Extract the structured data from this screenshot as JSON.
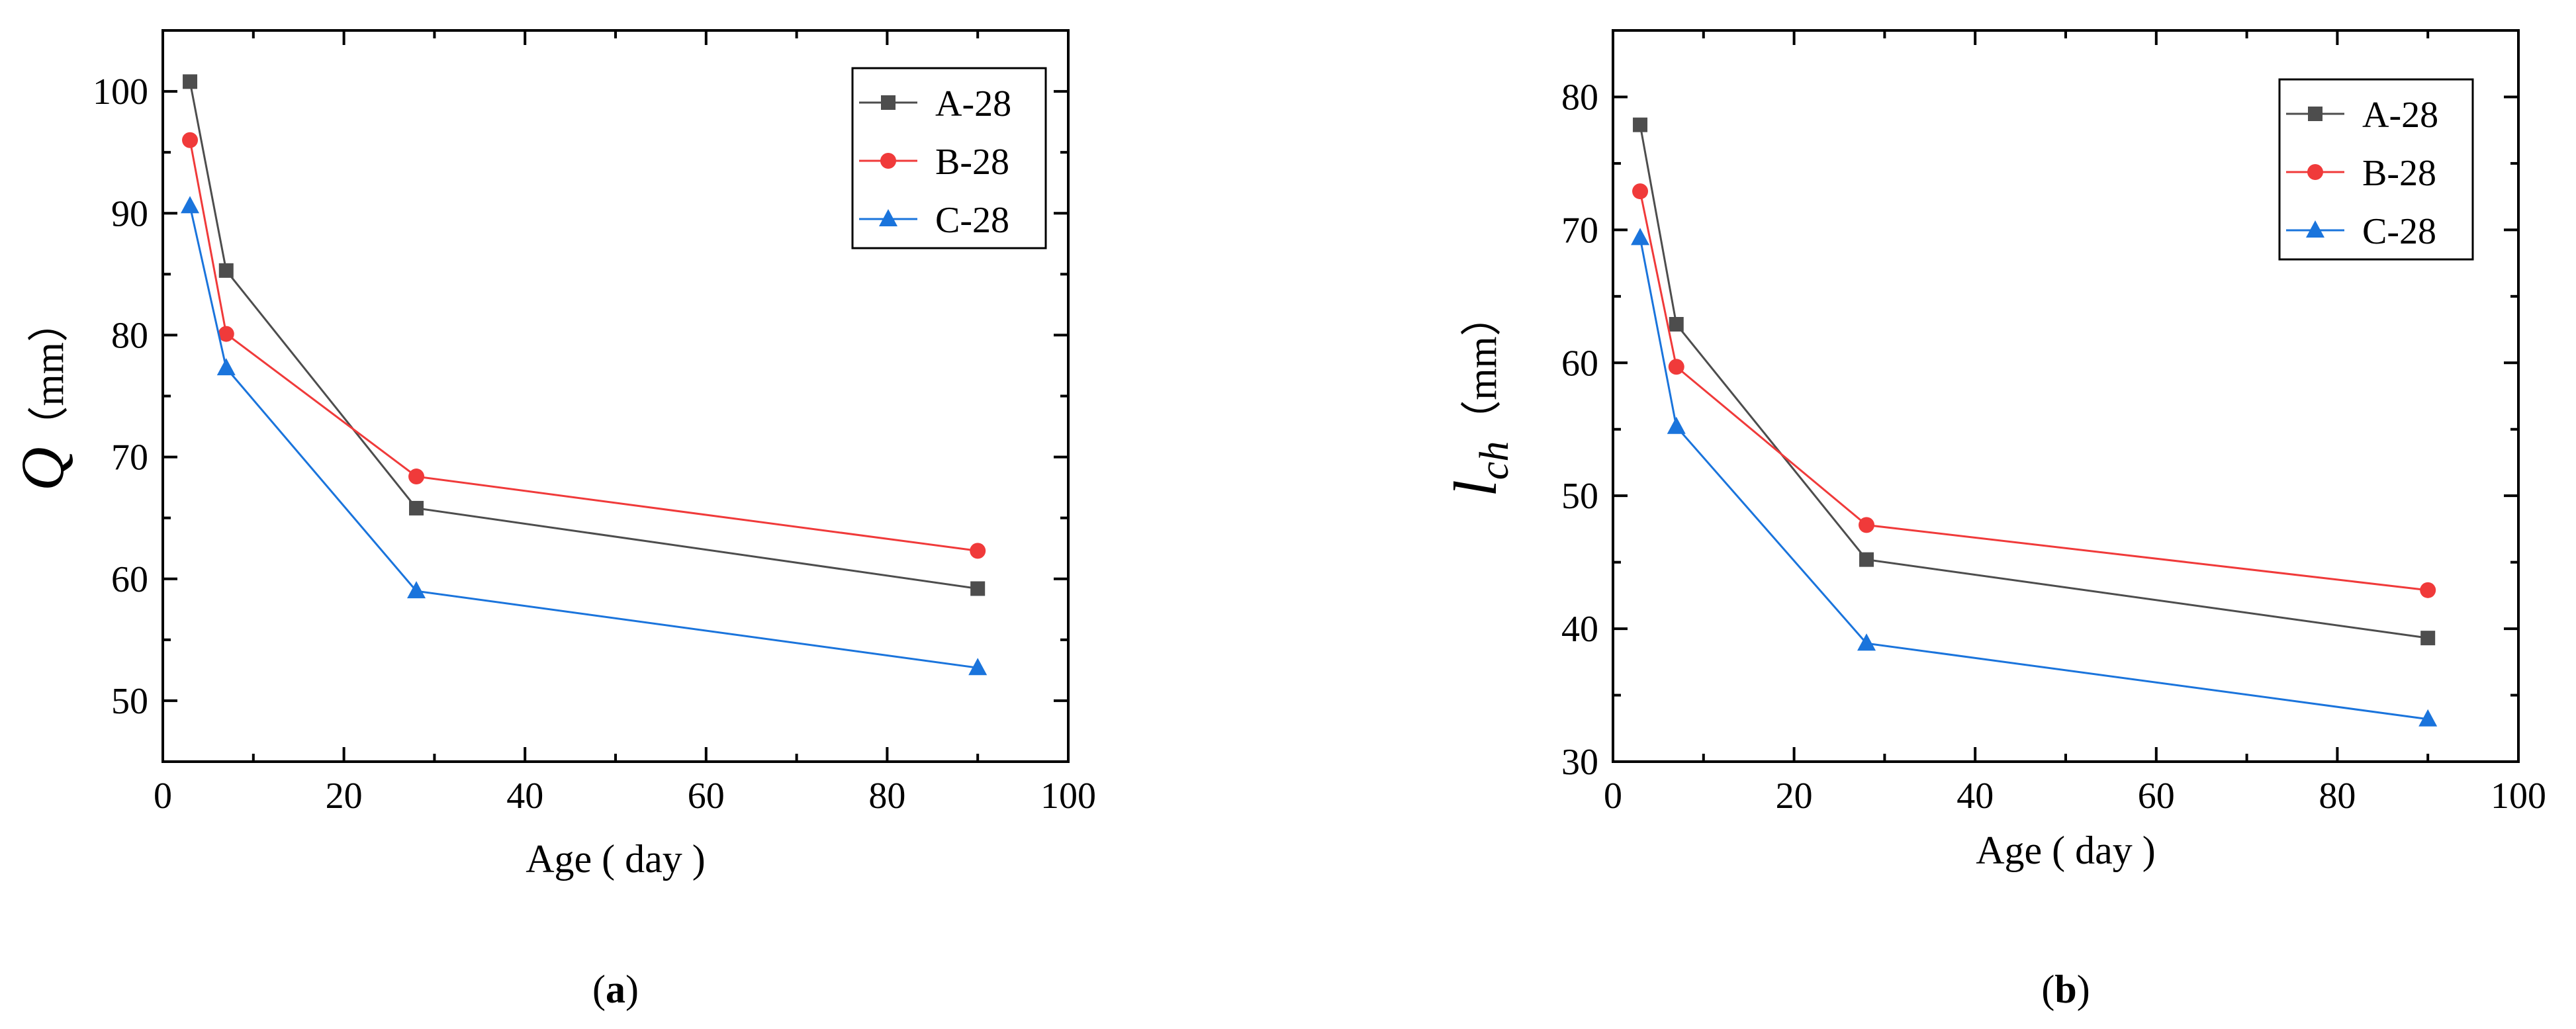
{
  "chart_data": [
    {
      "type": "line",
      "panel_label": "a",
      "title": "",
      "xlabel": "Age ( day )",
      "ylabel": {
        "symbol": "Q",
        "subscript": "",
        "unit": "（mm）"
      },
      "xlim": [
        0,
        100
      ],
      "ylim": [
        45,
        105
      ],
      "xticks": [
        0,
        20,
        40,
        60,
        80,
        100
      ],
      "yticks": [
        50,
        60,
        70,
        80,
        90,
        100
      ],
      "grid": false,
      "legend_position": "top-right",
      "x": [
        3,
        7,
        28,
        90
      ],
      "series": [
        {
          "name": "A-28",
          "marker": "square",
          "color": "#4d4d4d",
          "values": [
            100.8,
            85.3,
            65.8,
            59.2
          ]
        },
        {
          "name": "B-28",
          "marker": "circle",
          "color": "#f03a3a",
          "values": [
            96.0,
            80.1,
            68.4,
            62.3
          ]
        },
        {
          "name": "C-28",
          "marker": "triangle",
          "color": "#1a74dc",
          "values": [
            90.6,
            77.3,
            59.0,
            52.7
          ]
        }
      ]
    },
    {
      "type": "line",
      "panel_label": "b",
      "title": "",
      "xlabel": "Age ( day )",
      "ylabel": {
        "symbol": "l",
        "subscript": "ch",
        "unit": "（mm）"
      },
      "xlim": [
        0,
        100
      ],
      "ylim": [
        30,
        85
      ],
      "xticks": [
        0,
        20,
        40,
        60,
        80,
        100
      ],
      "yticks": [
        30,
        40,
        50,
        60,
        70,
        80
      ],
      "grid": false,
      "legend_position": "top-right",
      "x": [
        3,
        7,
        28,
        90
      ],
      "series": [
        {
          "name": "A-28",
          "marker": "square",
          "color": "#4d4d4d",
          "values": [
            77.9,
            62.9,
            45.2,
            39.3
          ]
        },
        {
          "name": "B-28",
          "marker": "circle",
          "color": "#f03a3a",
          "values": [
            72.9,
            59.7,
            47.8,
            42.9
          ]
        },
        {
          "name": "C-28",
          "marker": "triangle",
          "color": "#1a74dc",
          "values": [
            69.4,
            55.2,
            38.9,
            33.2
          ]
        }
      ]
    }
  ]
}
